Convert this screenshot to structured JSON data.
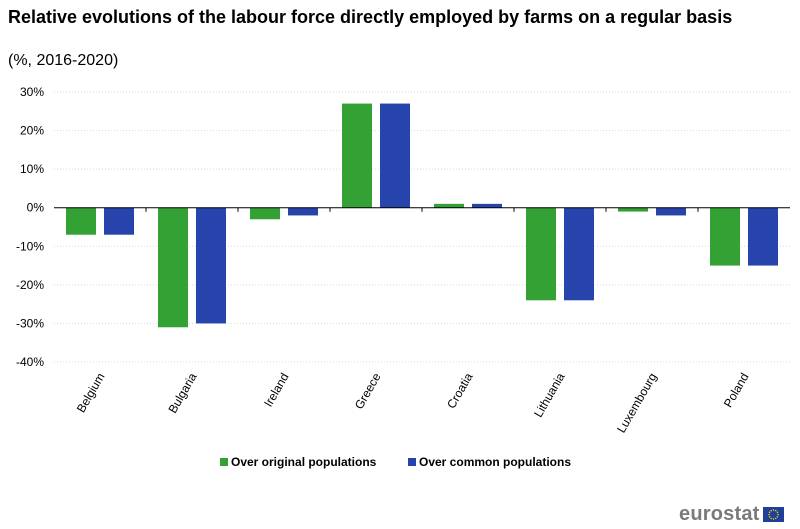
{
  "chart_data": {
    "type": "bar",
    "title": "Relative evolutions of the labour force directly employed by farms on a regular basis",
    "subtitle": "(%, 2016-2020)",
    "categories": [
      "Belgium",
      "Bulgaria",
      "Ireland",
      "Greece",
      "Croatia",
      "Lithuania",
      "Luxembourg",
      "Poland"
    ],
    "series": [
      {
        "name": "Over original populations",
        "color": "#33a133",
        "values": [
          -7,
          -31,
          -3,
          27,
          1,
          -24,
          -1,
          -15
        ]
      },
      {
        "name": "Over common populations",
        "color": "#2644ab",
        "values": [
          -7,
          -30,
          -2,
          27,
          1,
          -24,
          -2,
          -15
        ]
      }
    ],
    "ylim": [
      -40,
      30
    ],
    "yticks": [
      30,
      20,
      10,
      0,
      -10,
      -20,
      -30,
      -40
    ],
    "ytick_labels": [
      "30%",
      "20%",
      "10%",
      "0%",
      "-10%",
      "-20%",
      "-30%",
      "-40%"
    ],
    "xlabel": "",
    "ylabel": "",
    "grid": true,
    "legend_position": "bottom"
  },
  "branding": {
    "logo_text": "eurostat",
    "flag_icon": "eu-flag-icon"
  }
}
